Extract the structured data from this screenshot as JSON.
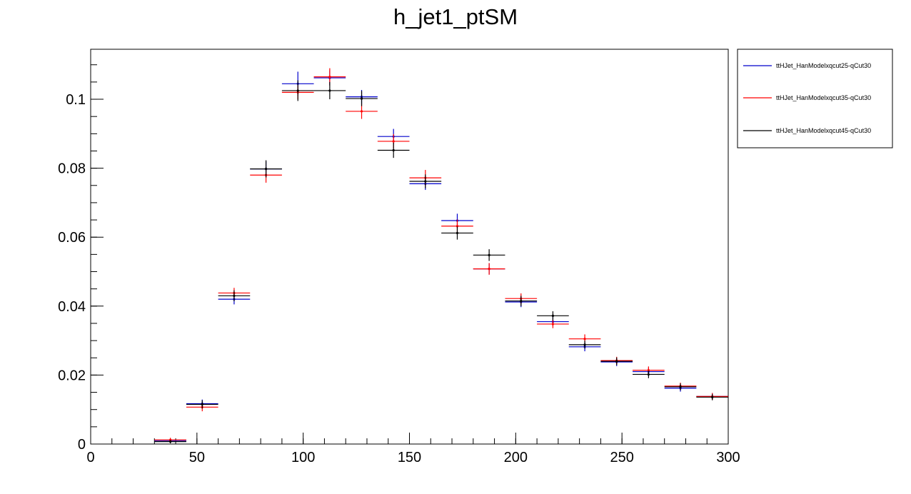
{
  "chart_data": {
    "type": "scatter",
    "title": "h_jet1_ptSM",
    "xlabel": "",
    "ylabel": "",
    "xlim": [
      0,
      300
    ],
    "ylim": [
      0,
      0.1145
    ],
    "bin_width": 15,
    "x_ticks": [
      0,
      50,
      100,
      150,
      200,
      250,
      300
    ],
    "x_tick_labels": [
      "0",
      "50",
      "100",
      "150",
      "200",
      "250",
      "300"
    ],
    "y_ticks": [
      0,
      0.02,
      0.04,
      0.06,
      0.08,
      0.1
    ],
    "y_tick_labels": [
      "0",
      "0.02",
      "0.04",
      "0.06",
      "0.08",
      "0.1"
    ],
    "x_minor_step": 10,
    "y_minor_step": 0.005,
    "grid": false,
    "legend_position": "right",
    "x": [
      37.5,
      52.5,
      67.5,
      82.5,
      97.5,
      112.5,
      127.5,
      142.5,
      157.5,
      172.5,
      187.5,
      202.5,
      217.5,
      232.5,
      247.5,
      262.5,
      277.5,
      292.5
    ],
    "series": [
      {
        "name": "ttHJet_HanModelxqcut25-qCut30",
        "color": "#0000cc",
        "values": [
          0.001,
          0.0117,
          0.042,
          0.0798,
          0.1045,
          0.1062,
          0.1007,
          0.0892,
          0.0755,
          0.0648,
          0.0508,
          0.0412,
          0.0355,
          0.0282,
          0.0238,
          0.021,
          0.0162,
          0.0138
        ],
        "errors": [
          0.0006,
          0.0012,
          0.0015,
          0.0022,
          0.0035,
          0.0022,
          0.002,
          0.0022,
          0.0018,
          0.002,
          0.0016,
          0.0015,
          0.0013,
          0.0013,
          0.0012,
          0.0011,
          0.001,
          0.001
        ]
      },
      {
        "name": "ttHJet_HanModelxqcut35-qCut30",
        "color": "#ff0000",
        "values": [
          0.0012,
          0.0107,
          0.0438,
          0.078,
          0.102,
          0.1065,
          0.0965,
          0.0878,
          0.0772,
          0.0632,
          0.0508,
          0.0422,
          0.0348,
          0.0305,
          0.0242,
          0.0214,
          0.0168,
          0.0138
        ],
        "errors": [
          0.0006,
          0.0012,
          0.0015,
          0.0022,
          0.002,
          0.0025,
          0.0022,
          0.0021,
          0.0023,
          0.0019,
          0.0017,
          0.0015,
          0.0012,
          0.0013,
          0.0011,
          0.0011,
          0.001,
          0.001
        ]
      },
      {
        "name": "ttHJet_HanModelxqcut45-qCut30",
        "color": "#000000",
        "values": [
          0.0007,
          0.0115,
          0.043,
          0.0798,
          0.1025,
          0.1025,
          0.1002,
          0.0852,
          0.0762,
          0.0612,
          0.0548,
          0.0415,
          0.0372,
          0.0288,
          0.024,
          0.0202,
          0.0166,
          0.0136
        ],
        "errors": [
          0.0005,
          0.0012,
          0.0016,
          0.0025,
          0.003,
          0.0025,
          0.0022,
          0.0022,
          0.002,
          0.0019,
          0.0017,
          0.0015,
          0.0013,
          0.0012,
          0.0011,
          0.0011,
          0.001,
          0.0009
        ]
      }
    ]
  }
}
